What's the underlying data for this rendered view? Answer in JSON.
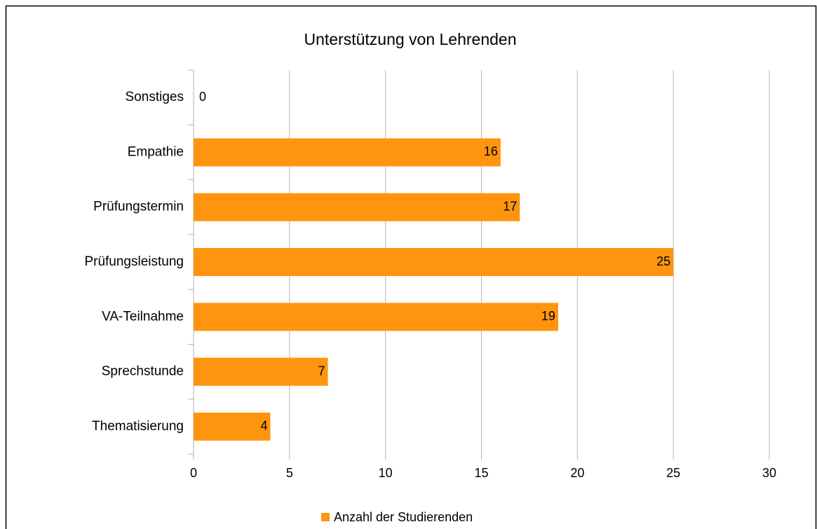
{
  "chart_data": {
    "type": "hbar",
    "title": "Unterstützung von Lehrenden",
    "categories": [
      "Sonstiges",
      "Empathie",
      "Prüfungstermin",
      "Prüfungsleistung",
      "VA-Teilnahme",
      "Sprechstunde",
      "Thematisierung"
    ],
    "series": [
      {
        "name": "Anzahl der Studierenden",
        "color": "#ff950e",
        "values": [
          0,
          16,
          17,
          25,
          19,
          7,
          4
        ]
      }
    ],
    "xlim": [
      0,
      30
    ],
    "xticks": [
      0,
      5,
      10,
      15,
      20,
      25,
      30
    ],
    "grid": true,
    "legend": "bottom"
  }
}
